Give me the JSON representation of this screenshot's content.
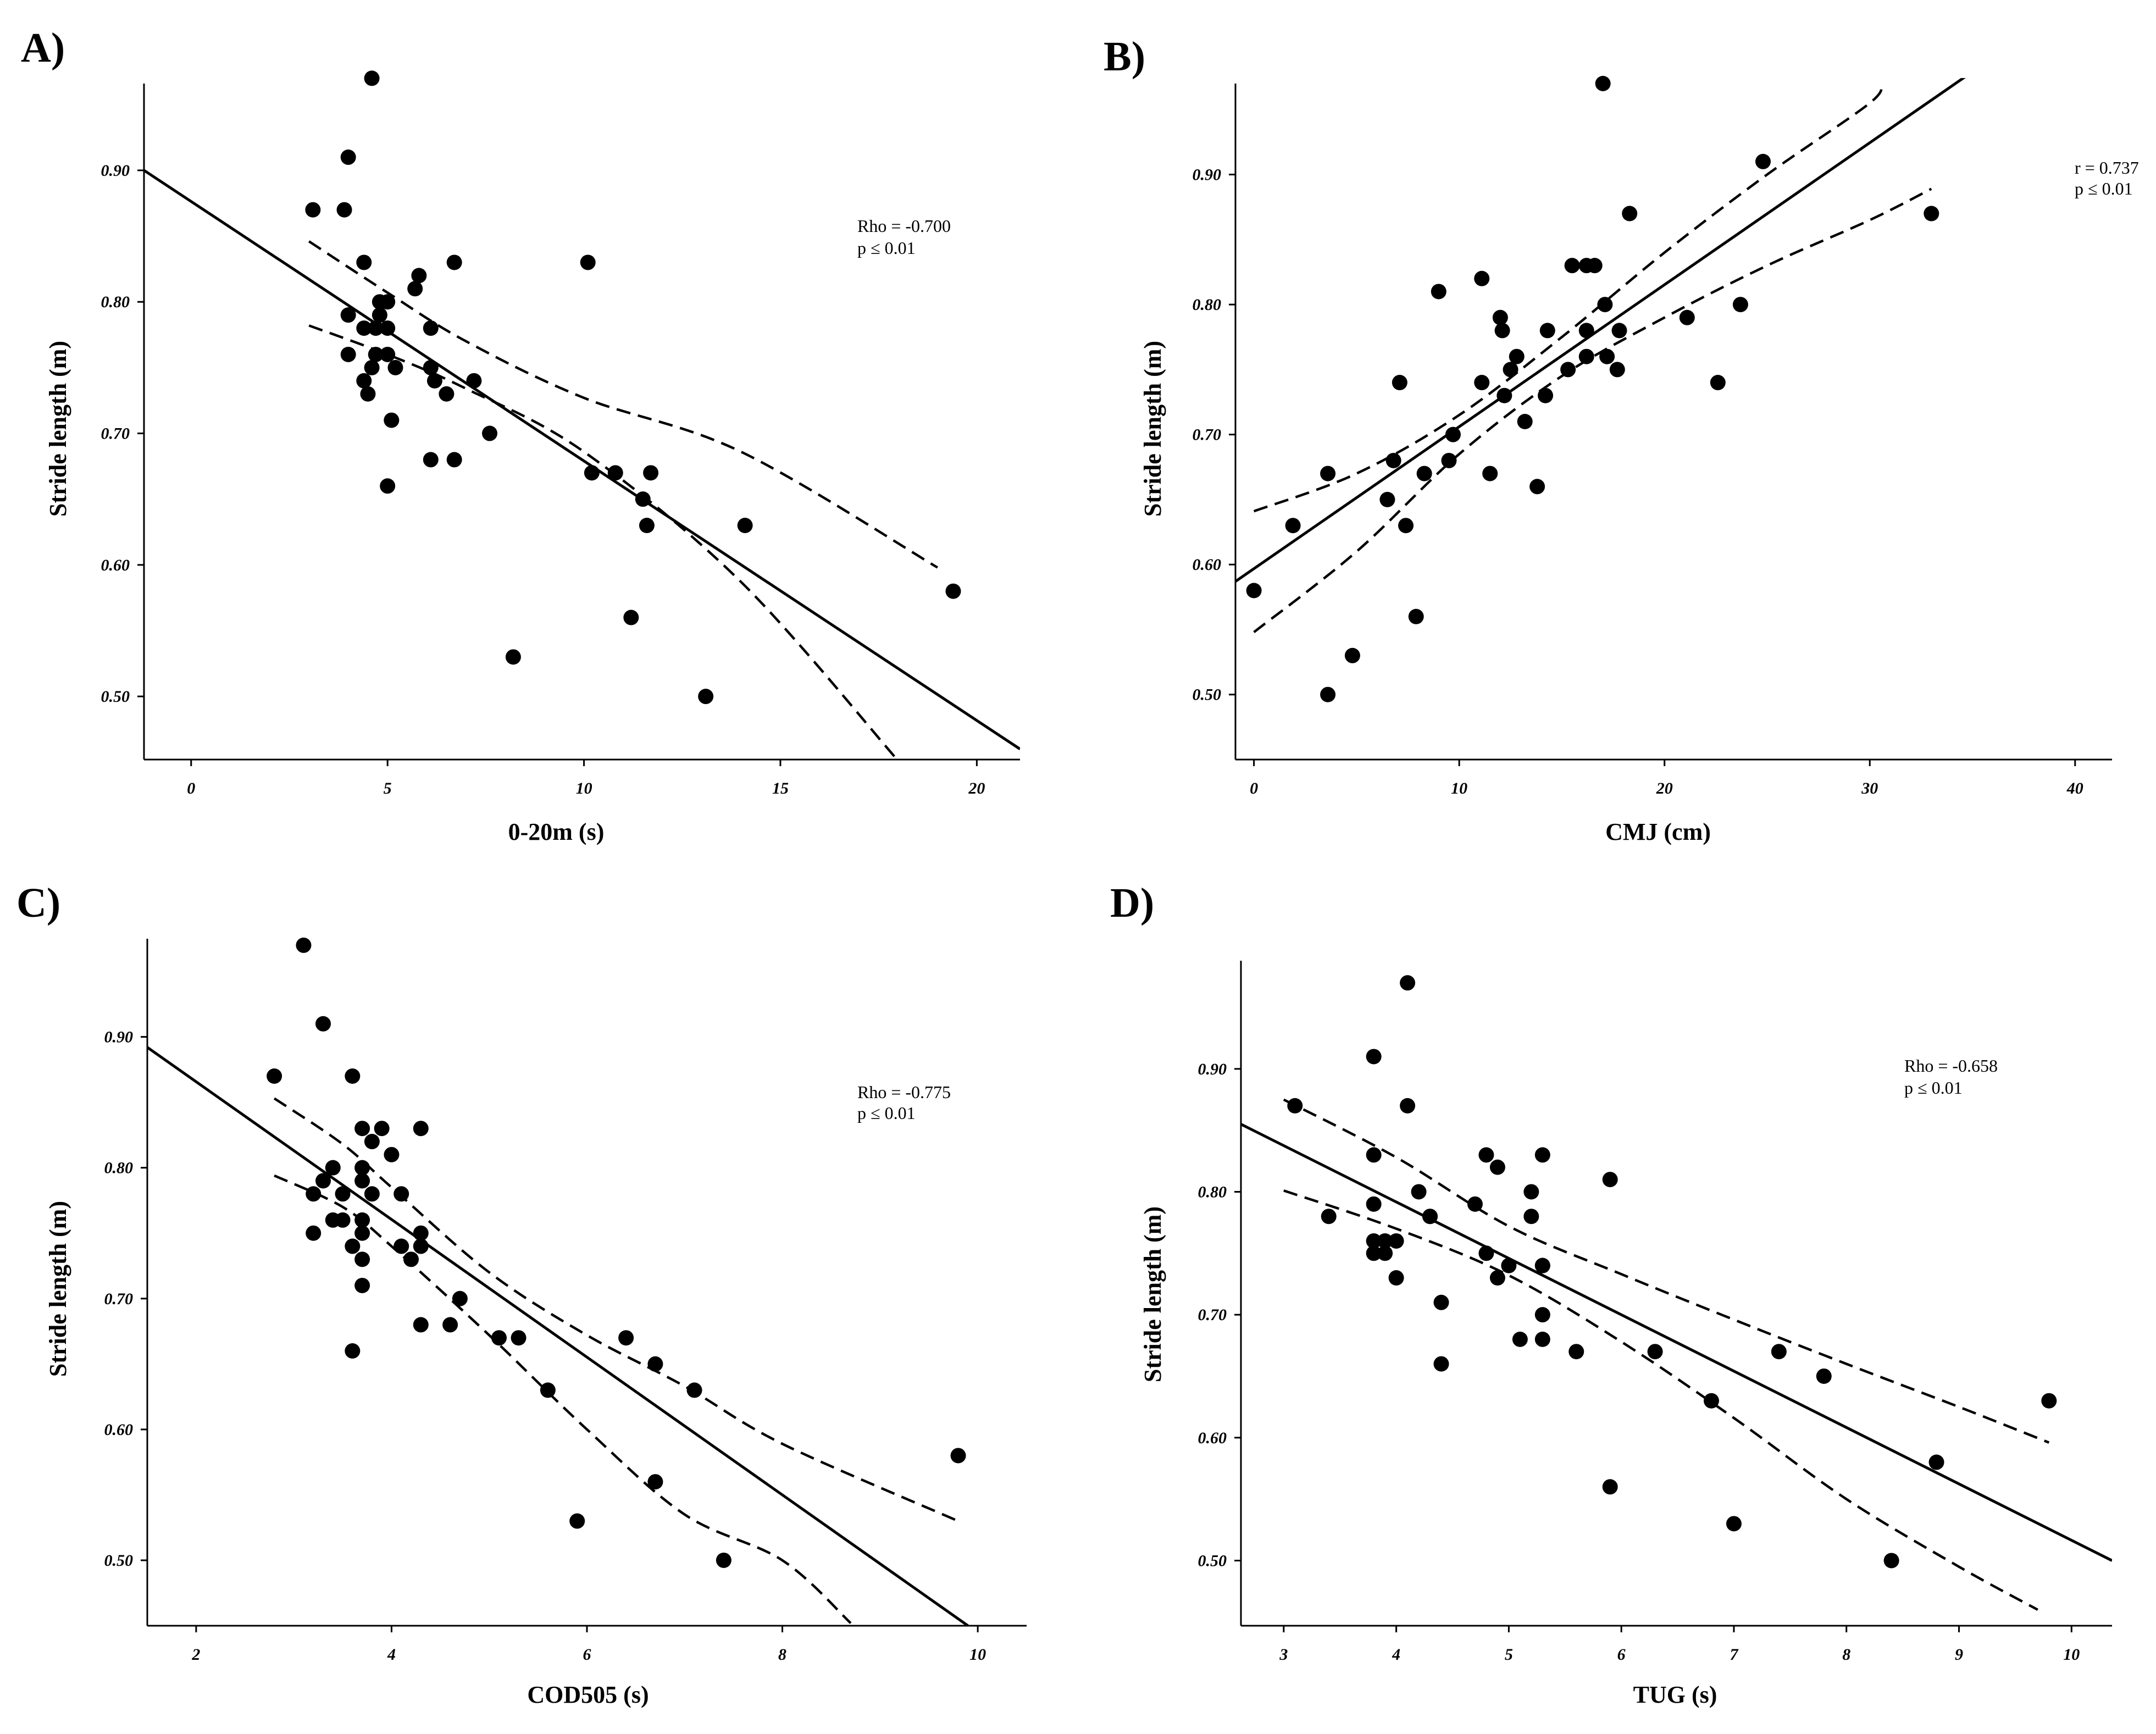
{
  "chart_data": [
    {
      "panel": "A)",
      "type": "scatter",
      "xlabel": "0-20m (s)",
      "ylabel": "Stride length (m)",
      "xlim": [
        -1.2,
        21.1
      ],
      "ylim": [
        0.452,
        0.966
      ],
      "xticks": [
        0,
        5,
        10,
        15,
        20
      ],
      "xtick_labels": [
        "0",
        "5",
        "10",
        "15",
        "20"
      ],
      "yticks": [
        0.5,
        0.6,
        0.7,
        0.8,
        0.9
      ],
      "ytick_labels": [
        "0.50",
        "0.60",
        "0.70",
        "0.80",
        "0.90"
      ],
      "annotation": [
        "Rho = -0.700",
        "p ≤ 0.01"
      ],
      "fit_line": [
        [
          -1.2,
          0.9
        ],
        [
          21.1,
          0.46
        ]
      ],
      "ci_upper": [
        [
          3.0,
          0.846
        ],
        [
          5.0,
          0.807
        ],
        [
          7.0,
          0.77
        ],
        [
          10.0,
          0.727
        ],
        [
          14.0,
          0.686
        ],
        [
          19.0,
          0.598
        ]
      ],
      "ci_lower": [
        [
          3.0,
          0.782
        ],
        [
          5.0,
          0.76
        ],
        [
          7.0,
          0.734
        ],
        [
          10.0,
          0.686
        ],
        [
          14.0,
          0.587
        ],
        [
          18.0,
          0.451
        ]
      ],
      "points": [
        [
          4.6,
          0.97
        ],
        [
          4.0,
          0.91
        ],
        [
          3.1,
          0.87
        ],
        [
          3.9,
          0.87
        ],
        [
          4.4,
          0.83
        ],
        [
          6.7,
          0.83
        ],
        [
          10.1,
          0.83
        ],
        [
          5.8,
          0.82
        ],
        [
          5.7,
          0.81
        ],
        [
          4.8,
          0.8
        ],
        [
          5.0,
          0.8
        ],
        [
          4.0,
          0.79
        ],
        [
          4.8,
          0.79
        ],
        [
          4.4,
          0.78
        ],
        [
          4.7,
          0.78
        ],
        [
          5.0,
          0.78
        ],
        [
          6.1,
          0.78
        ],
        [
          4.0,
          0.76
        ],
        [
          4.7,
          0.76
        ],
        [
          5.0,
          0.76
        ],
        [
          4.6,
          0.75
        ],
        [
          5.2,
          0.75
        ],
        [
          6.1,
          0.75
        ],
        [
          4.4,
          0.74
        ],
        [
          6.2,
          0.74
        ],
        [
          7.2,
          0.74
        ],
        [
          4.5,
          0.73
        ],
        [
          6.5,
          0.73
        ],
        [
          5.1,
          0.71
        ],
        [
          7.6,
          0.7
        ],
        [
          6.1,
          0.68
        ],
        [
          6.7,
          0.68
        ],
        [
          10.2,
          0.67
        ],
        [
          10.8,
          0.67
        ],
        [
          11.7,
          0.67
        ],
        [
          5.0,
          0.66
        ],
        [
          11.5,
          0.65
        ],
        [
          11.6,
          0.63
        ],
        [
          14.1,
          0.63
        ],
        [
          19.4,
          0.58
        ],
        [
          11.2,
          0.56
        ],
        [
          8.2,
          0.53
        ],
        [
          13.1,
          0.5
        ]
      ]
    },
    {
      "panel": "B)",
      "type": "scatter",
      "xlabel": "CMJ (cm)",
      "ylabel": "Stride length (m)",
      "xlim": [
        -0.9,
        41.8
      ],
      "ylim": [
        0.45,
        0.97
      ],
      "xticks": [
        0,
        10,
        20,
        30,
        40
      ],
      "xtick_labels": [
        "0",
        "10",
        "20",
        "30",
        "40"
      ],
      "yticks": [
        0.5,
        0.6,
        0.7,
        0.8,
        0.9
      ],
      "ytick_labels": [
        "0.50",
        "0.60",
        "0.70",
        "0.80",
        "0.90"
      ],
      "annotation": [
        "r = 0.737",
        "p ≤ 0.01"
      ],
      "fit_line": [
        [
          -0.9,
          0.587
        ],
        [
          36.0,
          0.99
        ]
      ],
      "ci_upper": [
        [
          0.0,
          0.641
        ],
        [
          5.0,
          0.67
        ],
        [
          10.0,
          0.715
        ],
        [
          15.0,
          0.775
        ],
        [
          20.0,
          0.84
        ],
        [
          25.0,
          0.9
        ],
        [
          30.0,
          0.955
        ],
        [
          30.5,
          0.97
        ]
      ],
      "ci_lower": [
        [
          0.0,
          0.548
        ],
        [
          5.0,
          0.61
        ],
        [
          10.0,
          0.685
        ],
        [
          15.0,
          0.745
        ],
        [
          20.0,
          0.79
        ],
        [
          25.0,
          0.83
        ],
        [
          30.0,
          0.865
        ],
        [
          33.0,
          0.889
        ]
      ],
      "points": [
        [
          17.0,
          0.97
        ],
        [
          24.8,
          0.91
        ],
        [
          18.3,
          0.87
        ],
        [
          33.0,
          0.87
        ],
        [
          15.5,
          0.83
        ],
        [
          16.2,
          0.83
        ],
        [
          16.6,
          0.83
        ],
        [
          11.1,
          0.82
        ],
        [
          9.0,
          0.81
        ],
        [
          17.1,
          0.8
        ],
        [
          23.7,
          0.8
        ],
        [
          12.0,
          0.79
        ],
        [
          21.1,
          0.79
        ],
        [
          12.1,
          0.78
        ],
        [
          14.3,
          0.78
        ],
        [
          16.2,
          0.78
        ],
        [
          17.8,
          0.78
        ],
        [
          12.8,
          0.76
        ],
        [
          16.2,
          0.76
        ],
        [
          17.2,
          0.76
        ],
        [
          12.5,
          0.75
        ],
        [
          15.3,
          0.75
        ],
        [
          17.7,
          0.75
        ],
        [
          7.1,
          0.74
        ],
        [
          11.1,
          0.74
        ],
        [
          22.6,
          0.74
        ],
        [
          12.2,
          0.73
        ],
        [
          14.2,
          0.73
        ],
        [
          13.2,
          0.71
        ],
        [
          9.7,
          0.7
        ],
        [
          6.8,
          0.68
        ],
        [
          9.5,
          0.68
        ],
        [
          3.6,
          0.67
        ],
        [
          8.3,
          0.67
        ],
        [
          11.5,
          0.67
        ],
        [
          13.8,
          0.66
        ],
        [
          6.5,
          0.65
        ],
        [
          1.9,
          0.63
        ],
        [
          7.4,
          0.63
        ],
        [
          0.0,
          0.58
        ],
        [
          7.9,
          0.56
        ],
        [
          4.8,
          0.53
        ],
        [
          3.6,
          0.5
        ]
      ]
    },
    {
      "panel": "C)",
      "type": "scatter",
      "xlabel": "COD505 (s)",
      "ylabel": "Stride length (m)",
      "xlim": [
        1.5,
        10.5
      ],
      "ylim": [
        0.45,
        0.975
      ],
      "xticks": [
        2,
        4,
        6,
        8,
        10
      ],
      "xtick_labels": [
        "2",
        "4",
        "6",
        "8",
        "10"
      ],
      "yticks": [
        0.5,
        0.6,
        0.7,
        0.8,
        0.9
      ],
      "ytick_labels": [
        "0.50",
        "0.60",
        "0.70",
        "0.80",
        "0.90"
      ],
      "annotation": [
        "Rho = -0.775",
        "p ≤ 0.01"
      ],
      "fit_line": [
        [
          1.5,
          0.892
        ],
        [
          9.9,
          0.45
        ]
      ],
      "ci_upper": [
        [
          2.8,
          0.853
        ],
        [
          3.5,
          0.818
        ],
        [
          4.0,
          0.785
        ],
        [
          5.0,
          0.72
        ],
        [
          6.0,
          0.672
        ],
        [
          7.0,
          0.633
        ],
        [
          8.0,
          0.589
        ],
        [
          9.8,
          0.53
        ]
      ],
      "ci_lower": [
        [
          2.8,
          0.794
        ],
        [
          3.5,
          0.77
        ],
        [
          4.0,
          0.74
        ],
        [
          5.0,
          0.672
        ],
        [
          6.0,
          0.6
        ],
        [
          7.0,
          0.535
        ],
        [
          8.0,
          0.5
        ],
        [
          8.7,
          0.452
        ]
      ],
      "points": [
        [
          3.1,
          0.97
        ],
        [
          3.3,
          0.91
        ],
        [
          2.8,
          0.87
        ],
        [
          3.6,
          0.87
        ],
        [
          3.7,
          0.83
        ],
        [
          3.9,
          0.83
        ],
        [
          4.3,
          0.83
        ],
        [
          3.8,
          0.82
        ],
        [
          4.0,
          0.81
        ],
        [
          3.4,
          0.8
        ],
        [
          3.7,
          0.8
        ],
        [
          3.3,
          0.79
        ],
        [
          3.7,
          0.79
        ],
        [
          3.2,
          0.78
        ],
        [
          3.5,
          0.78
        ],
        [
          3.8,
          0.78
        ],
        [
          4.1,
          0.78
        ],
        [
          3.4,
          0.76
        ],
        [
          3.5,
          0.76
        ],
        [
          3.7,
          0.76
        ],
        [
          3.2,
          0.75
        ],
        [
          3.7,
          0.75
        ],
        [
          4.3,
          0.75
        ],
        [
          3.6,
          0.74
        ],
        [
          4.1,
          0.74
        ],
        [
          4.3,
          0.74
        ],
        [
          3.7,
          0.73
        ],
        [
          4.2,
          0.73
        ],
        [
          3.7,
          0.71
        ],
        [
          4.7,
          0.7
        ],
        [
          4.3,
          0.68
        ],
        [
          4.6,
          0.68
        ],
        [
          5.1,
          0.67
        ],
        [
          5.3,
          0.67
        ],
        [
          6.4,
          0.67
        ],
        [
          3.6,
          0.66
        ],
        [
          6.7,
          0.65
        ],
        [
          5.6,
          0.63
        ],
        [
          7.1,
          0.63
        ],
        [
          9.8,
          0.58
        ],
        [
          6.7,
          0.56
        ],
        [
          5.9,
          0.53
        ],
        [
          7.4,
          0.5
        ]
      ]
    },
    {
      "panel": "D)",
      "type": "scatter",
      "xlabel": "TUG (s)",
      "ylabel": "Stride length (m)",
      "xlim": [
        2.62,
        10.36
      ],
      "ylim": [
        0.447,
        0.988
      ],
      "xticks": [
        3,
        4,
        5,
        6,
        7,
        8,
        9,
        10
      ],
      "xtick_labels": [
        "3",
        "4",
        "5",
        "6",
        "7",
        "8",
        "9",
        "10"
      ],
      "yticks": [
        0.5,
        0.6,
        0.7,
        0.8,
        0.9
      ],
      "ytick_labels": [
        "0.50",
        "0.60",
        "0.70",
        "0.80",
        "0.90"
      ],
      "annotation": [
        "Rho = -0.658",
        "p ≤ 0.01"
      ],
      "fit_line": [
        [
          2.62,
          0.855
        ],
        [
          10.36,
          0.5
        ]
      ],
      "ci_upper": [
        [
          3.0,
          0.875
        ],
        [
          4.0,
          0.828
        ],
        [
          5.0,
          0.772
        ],
        [
          6.0,
          0.733
        ],
        [
          7.0,
          0.696
        ],
        [
          8.0,
          0.66
        ],
        [
          9.0,
          0.625
        ],
        [
          9.8,
          0.596
        ]
      ],
      "ci_lower": [
        [
          3.0,
          0.801
        ],
        [
          4.0,
          0.77
        ],
        [
          5.0,
          0.732
        ],
        [
          6.0,
          0.678
        ],
        [
          7.0,
          0.616
        ],
        [
          8.0,
          0.55
        ],
        [
          9.0,
          0.495
        ],
        [
          9.7,
          0.46
        ]
      ],
      "points": [
        [
          4.1,
          0.97
        ],
        [
          3.8,
          0.91
        ],
        [
          3.1,
          0.87
        ],
        [
          4.1,
          0.87
        ],
        [
          3.8,
          0.83
        ],
        [
          4.8,
          0.83
        ],
        [
          5.3,
          0.83
        ],
        [
          4.9,
          0.82
        ],
        [
          5.9,
          0.81
        ],
        [
          4.2,
          0.8
        ],
        [
          5.2,
          0.8
        ],
        [
          4.7,
          0.79
        ],
        [
          3.8,
          0.79
        ],
        [
          3.4,
          0.78
        ],
        [
          4.3,
          0.78
        ],
        [
          4.3,
          0.78
        ],
        [
          5.2,
          0.78
        ],
        [
          3.9,
          0.76
        ],
        [
          4.0,
          0.76
        ],
        [
          3.8,
          0.76
        ],
        [
          3.8,
          0.75
        ],
        [
          3.9,
          0.75
        ],
        [
          4.8,
          0.75
        ],
        [
          5.0,
          0.74
        ],
        [
          5.3,
          0.74
        ],
        [
          5.3,
          0.74
        ],
        [
          4.0,
          0.73
        ],
        [
          4.9,
          0.73
        ],
        [
          4.4,
          0.71
        ],
        [
          5.3,
          0.7
        ],
        [
          5.1,
          0.68
        ],
        [
          5.3,
          0.68
        ],
        [
          5.6,
          0.67
        ],
        [
          6.3,
          0.67
        ],
        [
          7.4,
          0.67
        ],
        [
          4.4,
          0.66
        ],
        [
          7.8,
          0.65
        ],
        [
          6.8,
          0.63
        ],
        [
          9.8,
          0.63
        ],
        [
          8.8,
          0.58
        ],
        [
          5.9,
          0.56
        ],
        [
          7.0,
          0.53
        ],
        [
          8.4,
          0.5
        ]
      ]
    }
  ]
}
